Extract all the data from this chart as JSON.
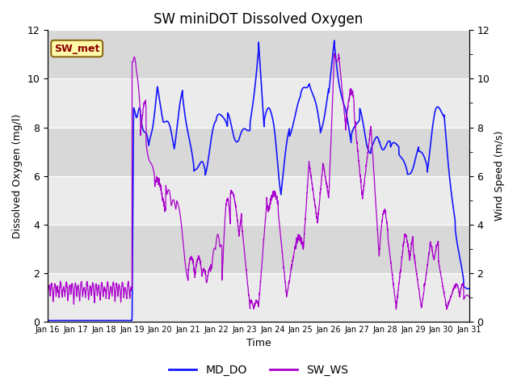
{
  "title": "SW miniDOT Dissolved Oxygen",
  "ylabel_left": "Dissolved Oxygen (mg/l)",
  "ylabel_right": "Wind Speed (m/s)",
  "xlabel": "Time",
  "ylim_left": [
    0,
    12
  ],
  "ylim_right": [
    0,
    12
  ],
  "xlim": [
    0,
    15
  ],
  "annotation_text": "SW_met",
  "annotation_color": "#8B0000",
  "annotation_bg": "#FFFAAA",
  "annotation_edge": "#8B6914",
  "legend_entries": [
    "MD_DO",
    "SW_WS"
  ],
  "line_color_do": "#1414FF",
  "line_color_ws": "#AA00CC",
  "bg_color_light": "#EBEBEB",
  "bg_color_dark": "#D8D8D8",
  "fig_bg": "#FFFFFF",
  "x_tick_labels": [
    "Jan 16",
    "Jan 17",
    "Jan 18",
    "Jan 19",
    "Jan 20",
    "Jan 21",
    "Jan 22",
    "Jan 23",
    "Jan 24",
    "Jan 25",
    "Jan 26",
    "Jan 27",
    "Jan 28",
    "Jan 29",
    "Jan 30",
    "Jan 31"
  ],
  "x_tick_positions": [
    0,
    1,
    2,
    3,
    4,
    5,
    6,
    7,
    8,
    9,
    10,
    11,
    12,
    13,
    14,
    15
  ],
  "yticks": [
    0,
    2,
    4,
    6,
    8,
    10,
    12
  ]
}
